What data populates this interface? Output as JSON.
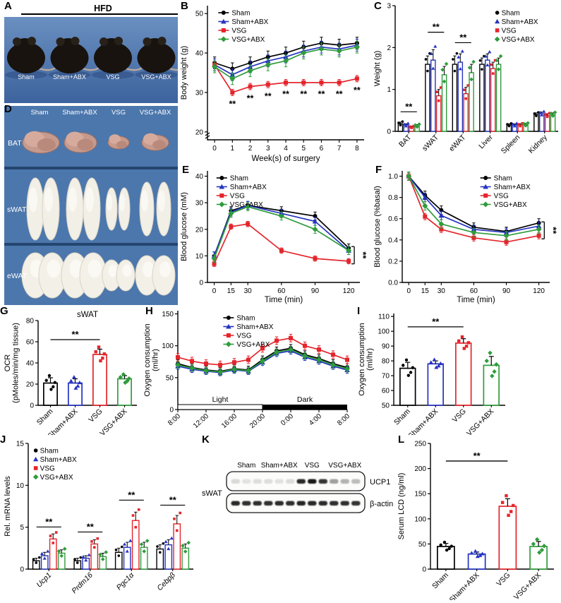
{
  "panel_labels": {
    "A": "A",
    "B": "B",
    "C": "C",
    "D": "D",
    "E": "E",
    "F": "F",
    "G": "G",
    "H": "H",
    "I": "I",
    "J": "J",
    "K": "K",
    "L": "L"
  },
  "groups": [
    {
      "name": "Sham",
      "color": "#000000",
      "marker": "circle"
    },
    {
      "name": "Sham+ABX",
      "color": "#2433c0",
      "marker": "triangle"
    },
    {
      "name": "VSG",
      "color": "#e4252c",
      "marker": "square"
    },
    {
      "name": "VSG+ABX",
      "color": "#2f9c3c",
      "marker": "diamond"
    }
  ],
  "panelA": {
    "diet_label": "HFD",
    "mice": [
      "Sham",
      "Sham+ABX",
      "VSG",
      "VSG+ABX"
    ]
  },
  "panelD": {
    "columns": [
      "Sham",
      "Sham+ABX",
      "VSG",
      "VSG+ABX"
    ],
    "rows": [
      "BAT",
      "sWAT",
      "eWAT"
    ]
  },
  "panelK": {
    "tissue": "sWAT",
    "groups": [
      "Sham",
      "Sham+ABX",
      "VSG",
      "VSG+ABX"
    ],
    "rows": [
      {
        "name": "UCP1",
        "lanes": [
          0.14,
          0.1,
          0.12,
          0.12,
          0.1,
          0.13,
          0.88,
          0.95,
          0.82,
          0.38,
          0.3,
          0.26
        ]
      },
      {
        "name": "β-actin",
        "lanes": [
          0.88,
          0.85,
          0.86,
          0.85,
          0.87,
          0.86,
          0.9,
          0.88,
          0.87,
          0.86,
          0.85,
          0.84
        ]
      }
    ]
  },
  "chart_data": {
    "B": {
      "type": "line",
      "x": [
        0,
        1,
        2,
        3,
        4,
        5,
        6,
        7,
        8
      ],
      "xticks": [
        0,
        1,
        2,
        3,
        4,
        5,
        6,
        7,
        8
      ],
      "series": [
        {
          "group": 0,
          "values": [
            37.5,
            36.0,
            37.5,
            39.0,
            40.0,
            41.5,
            42.5,
            42.0,
            42.5
          ],
          "err": 1.5
        },
        {
          "group": 1,
          "values": [
            37.0,
            34.5,
            36.5,
            38.0,
            39.0,
            40.5,
            41.5,
            41.0,
            42.0
          ],
          "err": 1.5
        },
        {
          "group": 2,
          "values": [
            37.0,
            30.0,
            31.5,
            32.0,
            32.5,
            32.5,
            32.5,
            32.5,
            33.5
          ],
          "err": 0.8
        },
        {
          "group": 3,
          "values": [
            36.5,
            33.5,
            35.5,
            37.0,
            38.0,
            40.0,
            41.0,
            40.5,
            41.5
          ],
          "err": 1.5
        }
      ],
      "xlabel": "Week(s) of surgery",
      "ylabel": "Body weight (g)",
      "xlim": [
        -0.4,
        8.4
      ],
      "ylim": [
        18,
        52
      ],
      "yticks": [
        20,
        30,
        40,
        50
      ],
      "ybreak": true,
      "legend": {
        "fx": 0.06
      },
      "sig": [
        {
          "x": 1,
          "y": 27.0,
          "label": "**"
        },
        {
          "x": 2,
          "y": 28.5,
          "label": "**"
        },
        {
          "x": 3,
          "y": 29.0,
          "label": "**"
        },
        {
          "x": 4,
          "y": 29.5,
          "label": "**"
        },
        {
          "x": 5,
          "y": 29.5,
          "label": "**"
        },
        {
          "x": 6,
          "y": 29.5,
          "label": "**"
        },
        {
          "x": 7,
          "y": 29.5,
          "label": "**"
        },
        {
          "x": 8,
          "y": 30.5,
          "label": "**"
        }
      ]
    },
    "C": {
      "type": "groupbar",
      "categories": [
        "BAT",
        "sWAT",
        "eWAT",
        "Liver",
        "Spleen",
        "Kidney"
      ],
      "series": [
        {
          "group": 0,
          "values": [
            0.18,
            1.6,
            1.6,
            1.6,
            0.15,
            0.4
          ],
          "err": [
            0.04,
            0.2,
            0.2,
            0.15,
            0.03,
            0.04
          ]
        },
        {
          "group": 1,
          "values": [
            0.15,
            1.7,
            1.65,
            1.7,
            0.15,
            0.42
          ],
          "err": [
            0.03,
            0.25,
            0.2,
            0.15,
            0.03,
            0.04
          ]
        },
        {
          "group": 2,
          "values": [
            0.1,
            0.85,
            0.9,
            1.5,
            0.15,
            0.38
          ],
          "err": [
            0.02,
            0.15,
            0.15,
            0.15,
            0.03,
            0.04
          ]
        },
        {
          "group": 3,
          "values": [
            0.13,
            1.35,
            1.4,
            1.6,
            0.16,
            0.4
          ],
          "err": [
            0.03,
            0.2,
            0.2,
            0.15,
            0.03,
            0.04
          ]
        }
      ],
      "ylabel": "Weight (g)",
      "ylim": [
        0,
        3
      ],
      "yticks": [
        0,
        1,
        2,
        3
      ],
      "legend": {
        "fx": 0.6
      },
      "sig": [
        {
          "x": 0,
          "y": 0.5,
          "label": "**"
        },
        {
          "x": 1,
          "y": 2.4,
          "label": "**"
        },
        {
          "x": 2,
          "y": 2.15,
          "label": "**"
        }
      ]
    },
    "E": {
      "type": "line",
      "x": [
        0,
        15,
        30,
        60,
        90,
        120
      ],
      "xticks": [
        0,
        15,
        30,
        60,
        90,
        120
      ],
      "series": [
        {
          "group": 0,
          "values": [
            10.0,
            27.0,
            29.0,
            27.0,
            25.0,
            13.0
          ],
          "err": 1.5
        },
        {
          "group": 1,
          "values": [
            10.0,
            26.5,
            29.0,
            26.0,
            23.0,
            12.0
          ],
          "err": 1.5
        },
        {
          "group": 2,
          "values": [
            7.0,
            21.0,
            22.0,
            12.0,
            9.0,
            8.0
          ],
          "err": 1.0
        },
        {
          "group": 3,
          "values": [
            9.0,
            26.0,
            28.5,
            25.0,
            20.0,
            12.0
          ],
          "err": 1.5
        }
      ],
      "xlabel": "Time (min)",
      "ylabel": "Blood glucose (mM)",
      "xlim": [
        -6,
        130
      ],
      "ylim": [
        0,
        42
      ],
      "yticks": [
        0,
        10,
        20,
        30,
        40
      ],
      "legend": {
        "fx": 0.05
      },
      "sig": [
        {
          "vx": 125,
          "y1": 13.5,
          "y2": 7.0,
          "label": "**"
        }
      ]
    },
    "F": {
      "type": "line",
      "x": [
        0,
        15,
        30,
        60,
        90,
        120
      ],
      "xticks": [
        0,
        15,
        30,
        60,
        90,
        120
      ],
      "series": [
        {
          "group": 0,
          "values": [
            1.0,
            0.82,
            0.68,
            0.52,
            0.48,
            0.56
          ],
          "err": 0.04
        },
        {
          "group": 1,
          "values": [
            1.0,
            0.8,
            0.63,
            0.5,
            0.47,
            0.53
          ],
          "err": 0.04
        },
        {
          "group": 2,
          "values": [
            1.0,
            0.62,
            0.5,
            0.42,
            0.38,
            0.44
          ],
          "err": 0.03
        },
        {
          "group": 3,
          "values": [
            1.0,
            0.72,
            0.55,
            0.47,
            0.44,
            0.5
          ],
          "err": 0.04
        }
      ],
      "xlabel": "Time (min)",
      "ylabel": "Blood glucose (%basal)",
      "xlim": [
        -6,
        130
      ],
      "ylim": [
        0,
        1.05
      ],
      "yticks": [
        0,
        0.2,
        0.4,
        0.6,
        0.8,
        1.0
      ],
      "yticklabels": [
        "0.0",
        "0.2",
        "0.4",
        "0.6",
        "0.8",
        "1.0"
      ],
      "legend": {
        "fx": 0.52
      },
      "sig": [
        {
          "vx": 125,
          "y1": 0.57,
          "y2": 0.41,
          "label": "**"
        }
      ]
    },
    "G": {
      "type": "bar",
      "categories": [
        "Sham",
        "Sham+ABX",
        "VSG",
        "VSG+ABX"
      ],
      "values": [
        21,
        21,
        48,
        25
      ],
      "errs": [
        5,
        4,
        5,
        3
      ],
      "title": "sWAT",
      "ylabel": "OCR\n(pMoles/min/mg tissue)",
      "ylim": [
        0,
        80
      ],
      "yticks": [
        0,
        20,
        40,
        60,
        80
      ],
      "sig": [
        {
          "bracket": [
            0,
            2
          ],
          "y": 62,
          "label": "**"
        }
      ]
    },
    "H": {
      "type": "line",
      "x": [
        0,
        2,
        4,
        6,
        8,
        10,
        12,
        14,
        16,
        18,
        20,
        22,
        24
      ],
      "xticks": [
        0,
        4,
        8,
        12,
        16,
        20,
        24
      ],
      "xticklabels": [
        "8:00",
        "12:00",
        "16:00",
        "20:00",
        "0:00",
        "4:00",
        "8:00"
      ],
      "rotateXTicks": true,
      "series": [
        {
          "group": 0,
          "values": [
            72,
            66,
            62,
            60,
            64,
            62,
            78,
            92,
            96,
            86,
            80,
            72,
            66
          ],
          "err": 6
        },
        {
          "group": 1,
          "values": [
            68,
            63,
            60,
            58,
            62,
            60,
            74,
            88,
            92,
            82,
            76,
            68,
            62
          ],
          "err": 5
        },
        {
          "group": 2,
          "values": [
            82,
            76,
            72,
            70,
            74,
            78,
            96,
            108,
            112,
            100,
            94,
            86,
            78
          ],
          "err": 6
        },
        {
          "group": 3,
          "values": [
            70,
            65,
            61,
            59,
            63,
            61,
            76,
            90,
            94,
            84,
            78,
            70,
            64
          ],
          "err": 5
        }
      ],
      "ylabel": "Oxygen consumption\n(ml/hr)",
      "xlim": [
        0,
        24
      ],
      "ylim": [
        0,
        155
      ],
      "yticks": [
        0,
        50,
        100,
        150
      ],
      "legend": {
        "fx": 0.26
      },
      "lightdark": {
        "split": 0.5,
        "light": "Light",
        "dark": "Dark"
      }
    },
    "I": {
      "type": "bar",
      "categories": [
        "Sham",
        "Sham+ABX",
        "VSG",
        "VSG+ABX"
      ],
      "values": [
        75,
        78,
        92,
        77
      ],
      "errs": [
        4,
        2,
        3,
        6
      ],
      "ylabel": "Oxygen consumption\n(ml/hr)",
      "ylim": [
        50,
        112
      ],
      "yticks": [
        50,
        60,
        70,
        80,
        90,
        100,
        110
      ],
      "sig": [
        {
          "bracket": [
            0,
            2
          ],
          "y": 103,
          "label": "**"
        }
      ]
    },
    "J": {
      "type": "groupbar",
      "categories": [
        "Ucp1",
        "Prdm16",
        "Pgc1α",
        "Cebpβ"
      ],
      "italic_categories": true,
      "series": [
        {
          "group": 0,
          "values": [
            1.0,
            1.0,
            2.0,
            2.4
          ],
          "err": [
            0.3,
            0.3,
            0.5,
            0.5
          ]
        },
        {
          "group": 1,
          "values": [
            1.6,
            1.3,
            2.6,
            2.9
          ],
          "err": [
            0.4,
            0.3,
            0.6,
            0.6
          ]
        },
        {
          "group": 2,
          "values": [
            3.6,
            3.0,
            5.8,
            5.4
          ],
          "err": [
            0.6,
            0.5,
            1.0,
            1.0
          ]
        },
        {
          "group": 3,
          "values": [
            1.9,
            1.5,
            2.6,
            2.5
          ],
          "err": [
            0.4,
            0.4,
            0.6,
            0.5
          ]
        }
      ],
      "ylabel": "Rel. mRNA levels",
      "ylim": [
        0,
        15
      ],
      "yticks": [
        0,
        5,
        10,
        15
      ],
      "legend": {
        "fx": 0.02
      },
      "sig": [
        {
          "x": 0,
          "y": 5.2,
          "label": "**"
        },
        {
          "x": 1,
          "y": 4.6,
          "label": "**"
        },
        {
          "x": 2,
          "y": 8.4,
          "label": "**"
        },
        {
          "x": 3,
          "y": 7.8,
          "label": "**"
        }
      ]
    },
    "L": {
      "type": "bar",
      "categories": [
        "Sham",
        "Sham+ABX",
        "VSG",
        "VSG+ABX"
      ],
      "values": [
        45,
        30,
        125,
        45
      ],
      "errs": [
        6,
        4,
        15,
        10
      ],
      "ylabel": "Serum LCD (ng/ml)",
      "ylim": [
        0,
        250
      ],
      "yticks": [
        0,
        50,
        100,
        150,
        200,
        250
      ],
      "sig": [
        {
          "bracket": [
            0,
            2
          ],
          "y": 215,
          "label": "**"
        }
      ]
    }
  }
}
